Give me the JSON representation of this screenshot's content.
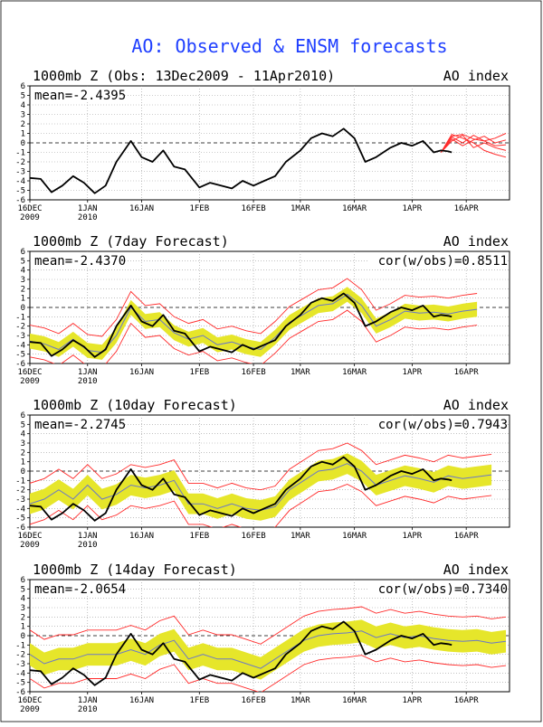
{
  "figure": {
    "title": "AO: Observed & ENSM forecasts",
    "title_color": "#1f3fff",
    "obs_color": "#000000",
    "member_color": "#ff2a2a",
    "spread_color": "#e6e62a",
    "mean_color": "#6a78c8",
    "grid_color": "#9a9a9a"
  },
  "chart_data": [
    {
      "type": "line",
      "title": "1000mb Z (Obs: 13Dec2009 - 11Apr2010)",
      "right_title": "AO index",
      "mean_label": "mean=-2.4395",
      "cor_label": "",
      "ylim": [
        -6,
        6
      ],
      "y_ticks": [
        "6",
        "5",
        "4",
        "3",
        "2",
        "1",
        "0",
        "-1",
        "-2",
        "-3",
        "-4",
        "-5",
        "-6"
      ],
      "x_tick_labels": [
        {
          "day": 0,
          "text": "16DEC",
          "year": "2009"
        },
        {
          "day": 16,
          "text": "1JAN",
          "year": "2010"
        },
        {
          "day": 31,
          "text": "16JAN",
          "year": ""
        },
        {
          "day": 47,
          "text": "1FEB",
          "year": ""
        },
        {
          "day": 62,
          "text": "16FEB",
          "year": ""
        },
        {
          "day": 75,
          "text": "1MAR",
          "year": ""
        },
        {
          "day": 90,
          "text": "16MAR",
          "year": ""
        },
        {
          "day": 106,
          "text": "1APR",
          "year": ""
        },
        {
          "day": 121,
          "text": "16APR",
          "year": ""
        }
      ],
      "xlim": [
        0,
        133
      ],
      "observed": {
        "x": [
          0,
          3,
          6,
          9,
          12,
          15,
          18,
          21,
          24,
          28,
          31,
          34,
          37,
          40,
          43,
          47,
          50,
          53,
          56,
          59,
          62,
          65,
          68,
          71,
          75,
          78,
          81,
          84,
          87,
          90,
          93,
          96,
          100,
          103,
          106,
          109,
          112,
          114,
          116,
          117
        ],
        "y": [
          -3.7,
          -3.8,
          -5.2,
          -4.5,
          -3.5,
          -4.2,
          -5.3,
          -4.5,
          -2.0,
          0.2,
          -1.5,
          -2.0,
          -0.8,
          -2.5,
          -2.8,
          -4.7,
          -4.2,
          -4.5,
          -4.8,
          -4.0,
          -4.5,
          -4.0,
          -3.5,
          -2.0,
          -0.8,
          0.5,
          1.0,
          0.7,
          1.5,
          0.5,
          -2.0,
          -1.5,
          -0.5,
          0.0,
          -0.3,
          0.2,
          -1.0,
          -0.8,
          -0.9,
          -1.0
        ]
      },
      "members": [
        {
          "x": [
            114,
            117,
            120,
            123,
            126,
            129,
            132
          ],
          "y": [
            -1.0,
            0.6,
            0.0,
            0.8,
            0.2,
            0.5,
            1.0
          ]
        },
        {
          "x": [
            114,
            117,
            120,
            123,
            126,
            129,
            132
          ],
          "y": [
            -1.0,
            0.2,
            0.8,
            -0.5,
            0.0,
            -0.5,
            -0.8
          ]
        },
        {
          "x": [
            114,
            117,
            120,
            123,
            126,
            129,
            132
          ],
          "y": [
            -1.0,
            0.9,
            0.5,
            0.0,
            -0.8,
            -1.2,
            -1.5
          ]
        },
        {
          "x": [
            114,
            117,
            120,
            123,
            126,
            129,
            132
          ],
          "y": [
            -1.0,
            0.4,
            -0.3,
            0.3,
            0.7,
            0.0,
            0.3
          ]
        },
        {
          "x": [
            114,
            117,
            120,
            123,
            126,
            129,
            132
          ],
          "y": [
            -1.0,
            0.7,
            0.9,
            0.4,
            0.2,
            -0.3,
            -0.2
          ]
        }
      ]
    },
    {
      "type": "line",
      "title": "1000mb Z (7day Forecast)",
      "right_title": "AO index",
      "mean_label": "mean=-2.4370",
      "cor_label": "cor(w/obs)=0.8511",
      "ylim": [
        -6,
        6
      ],
      "y_ticks": [
        "6",
        "5",
        "4",
        "3",
        "2",
        "1",
        "0",
        "-1",
        "-2",
        "-3",
        "-4",
        "-5",
        "-6"
      ],
      "x_tick_labels": [
        {
          "day": 0,
          "text": "16DEC",
          "year": "2009"
        },
        {
          "day": 16,
          "text": "1JAN",
          "year": "2010"
        },
        {
          "day": 31,
          "text": "16JAN",
          "year": ""
        },
        {
          "day": 47,
          "text": "1FEB",
          "year": ""
        },
        {
          "day": 62,
          "text": "16FEB",
          "year": ""
        },
        {
          "day": 75,
          "text": "1MAR",
          "year": ""
        },
        {
          "day": 90,
          "text": "16MAR",
          "year": ""
        },
        {
          "day": 106,
          "text": "1APR",
          "year": ""
        },
        {
          "day": 121,
          "text": "16APR",
          "year": ""
        }
      ],
      "xlim": [
        0,
        133
      ],
      "forecast_x": [
        0,
        4,
        8,
        12,
        16,
        20,
        24,
        28,
        32,
        36,
        40,
        44,
        48,
        52,
        56,
        60,
        64,
        68,
        72,
        76,
        80,
        84,
        88,
        92,
        96,
        100,
        104,
        108,
        112,
        116,
        120,
        124
      ],
      "ens_mean": [
        -3.6,
        -3.9,
        -4.5,
        -3.4,
        -4.6,
        -4.8,
        -3.0,
        0.0,
        -1.5,
        -1.3,
        -2.7,
        -3.4,
        -3.0,
        -4.0,
        -3.7,
        -4.2,
        -4.5,
        -3.2,
        -1.6,
        -0.7,
        0.2,
        0.4,
        1.4,
        0.2,
        -2.0,
        -1.3,
        -0.4,
        -0.6,
        -0.5,
        -0.7,
        -0.4,
        -0.2
      ],
      "spread_half": 0.8,
      "outer_half": 1.7,
      "observed": {
        "x": [
          0,
          3,
          6,
          9,
          12,
          15,
          18,
          21,
          24,
          28,
          31,
          34,
          37,
          40,
          43,
          47,
          50,
          53,
          56,
          59,
          62,
          65,
          68,
          71,
          75,
          78,
          81,
          84,
          87,
          90,
          93,
          96,
          100,
          103,
          106,
          109,
          112,
          114,
          116,
          117
        ],
        "y": [
          -3.7,
          -3.8,
          -5.2,
          -4.5,
          -3.5,
          -4.2,
          -5.3,
          -4.5,
          -2.0,
          0.2,
          -1.5,
          -2.0,
          -0.8,
          -2.5,
          -2.8,
          -4.7,
          -4.2,
          -4.5,
          -4.8,
          -4.0,
          -4.5,
          -4.0,
          -3.5,
          -2.0,
          -0.8,
          0.5,
          1.0,
          0.7,
          1.5,
          0.5,
          -2.0,
          -1.5,
          -0.5,
          0.0,
          -0.3,
          0.2,
          -1.0,
          -0.8,
          -0.9,
          -1.0
        ]
      }
    },
    {
      "type": "line",
      "title": "1000mb Z (10day Forecast)",
      "right_title": "AO index",
      "mean_label": "mean=-2.2745",
      "cor_label": "cor(w/obs)=0.7943",
      "ylim": [
        -6,
        6
      ],
      "y_ticks": [
        "6",
        "5",
        "4",
        "3",
        "2",
        "1",
        "0",
        "-1",
        "-2",
        "-3",
        "-4",
        "-5",
        "-6"
      ],
      "x_tick_labels": [
        {
          "day": 0,
          "text": "16DEC",
          "year": "2009"
        },
        {
          "day": 16,
          "text": "1JAN",
          "year": "2010"
        },
        {
          "day": 31,
          "text": "16JAN",
          "year": ""
        },
        {
          "day": 47,
          "text": "1FEB",
          "year": ""
        },
        {
          "day": 62,
          "text": "16FEB",
          "year": ""
        },
        {
          "day": 75,
          "text": "1MAR",
          "year": ""
        },
        {
          "day": 90,
          "text": "16MAR",
          "year": ""
        },
        {
          "day": 106,
          "text": "1APR",
          "year": ""
        },
        {
          "day": 121,
          "text": "16APR",
          "year": ""
        }
      ],
      "xlim": [
        0,
        133
      ],
      "forecast_x": [
        0,
        4,
        8,
        12,
        16,
        20,
        24,
        28,
        32,
        36,
        40,
        44,
        48,
        52,
        56,
        60,
        64,
        68,
        72,
        76,
        80,
        84,
        88,
        92,
        96,
        100,
        104,
        108,
        112,
        116,
        120,
        124,
        128
      ],
      "ens_mean": [
        -3.5,
        -3.0,
        -2.0,
        -3.0,
        -1.5,
        -3.0,
        -2.5,
        -1.5,
        -1.8,
        -1.5,
        -1.0,
        -3.5,
        -3.5,
        -4.0,
        -3.5,
        -4.0,
        -4.2,
        -3.8,
        -2.0,
        -1.0,
        0.0,
        0.2,
        0.8,
        0.0,
        -1.5,
        -1.0,
        -0.5,
        -0.8,
        -1.2,
        -0.5,
        -0.8,
        -0.6,
        -0.4
      ],
      "spread_half": 1.1,
      "outer_half": 2.2,
      "observed": {
        "x": [
          0,
          3,
          6,
          9,
          12,
          15,
          18,
          21,
          24,
          28,
          31,
          34,
          37,
          40,
          43,
          47,
          50,
          53,
          56,
          59,
          62,
          65,
          68,
          71,
          75,
          78,
          81,
          84,
          87,
          90,
          93,
          96,
          100,
          103,
          106,
          109,
          112,
          114,
          116,
          117
        ],
        "y": [
          -3.7,
          -3.8,
          -5.2,
          -4.5,
          -3.5,
          -4.2,
          -5.3,
          -4.5,
          -2.0,
          0.2,
          -1.5,
          -2.0,
          -0.8,
          -2.5,
          -2.8,
          -4.7,
          -4.2,
          -4.5,
          -4.8,
          -4.0,
          -4.5,
          -4.0,
          -3.5,
          -2.0,
          -0.8,
          0.5,
          1.0,
          0.7,
          1.5,
          0.5,
          -2.0,
          -1.5,
          -0.5,
          0.0,
          -0.3,
          0.2,
          -1.0,
          -0.8,
          -0.9,
          -1.0
        ]
      }
    },
    {
      "type": "line",
      "title": "1000mb Z (14day Forecast)",
      "right_title": "AO index",
      "mean_label": "mean=-2.0654",
      "cor_label": "cor(w/obs)=0.7340",
      "ylim": [
        -6,
        6
      ],
      "y_ticks": [
        "6",
        "5",
        "4",
        "3",
        "2",
        "1",
        "0",
        "-1",
        "-2",
        "-3",
        "-4",
        "-5",
        "-6"
      ],
      "x_tick_labels": [
        {
          "day": 0,
          "text": "16DEC",
          "year": "2009"
        },
        {
          "day": 16,
          "text": "1JAN",
          "year": "2010"
        },
        {
          "day": 31,
          "text": "16JAN",
          "year": ""
        },
        {
          "day": 47,
          "text": "1FEB",
          "year": ""
        },
        {
          "day": 62,
          "text": "16FEB",
          "year": ""
        },
        {
          "day": 75,
          "text": "1MAR",
          "year": ""
        },
        {
          "day": 90,
          "text": "16MAR",
          "year": ""
        },
        {
          "day": 106,
          "text": "1APR",
          "year": ""
        },
        {
          "day": 121,
          "text": "16APR",
          "year": ""
        }
      ],
      "xlim": [
        0,
        133
      ],
      "forecast_x": [
        0,
        4,
        8,
        12,
        16,
        20,
        24,
        28,
        32,
        36,
        40,
        44,
        48,
        52,
        56,
        60,
        64,
        68,
        72,
        76,
        80,
        84,
        88,
        92,
        96,
        100,
        104,
        108,
        112,
        116,
        120,
        124,
        128,
        132
      ],
      "ens_mean": [
        -2.0,
        -3.0,
        -2.5,
        -2.5,
        -2.0,
        -2.0,
        -2.0,
        -1.5,
        -2.0,
        -1.0,
        -0.5,
        -2.5,
        -2.0,
        -2.5,
        -2.5,
        -3.0,
        -3.5,
        -2.5,
        -1.5,
        -0.5,
        0.0,
        0.2,
        0.3,
        0.5,
        -0.2,
        0.2,
        -0.2,
        0.0,
        -0.3,
        -0.5,
        -0.6,
        -0.5,
        -0.8,
        -0.6
      ],
      "spread_half": 1.2,
      "outer_half": 2.6,
      "observed": {
        "x": [
          0,
          3,
          6,
          9,
          12,
          15,
          18,
          21,
          24,
          28,
          31,
          34,
          37,
          40,
          43,
          47,
          50,
          53,
          56,
          59,
          62,
          65,
          68,
          71,
          75,
          78,
          81,
          84,
          87,
          90,
          93,
          96,
          100,
          103,
          106,
          109,
          112,
          114,
          116,
          117
        ],
        "y": [
          -3.7,
          -3.8,
          -5.2,
          -4.5,
          -3.5,
          -4.2,
          -5.3,
          -4.5,
          -2.0,
          0.2,
          -1.5,
          -2.0,
          -0.8,
          -2.5,
          -2.8,
          -4.7,
          -4.2,
          -4.5,
          -4.8,
          -4.0,
          -4.5,
          -4.0,
          -3.5,
          -2.0,
          -0.8,
          0.5,
          1.0,
          0.7,
          1.5,
          0.5,
          -2.0,
          -1.5,
          -0.5,
          0.0,
          -0.3,
          0.2,
          -1.0,
          -0.8,
          -0.9,
          -1.0
        ]
      }
    }
  ]
}
